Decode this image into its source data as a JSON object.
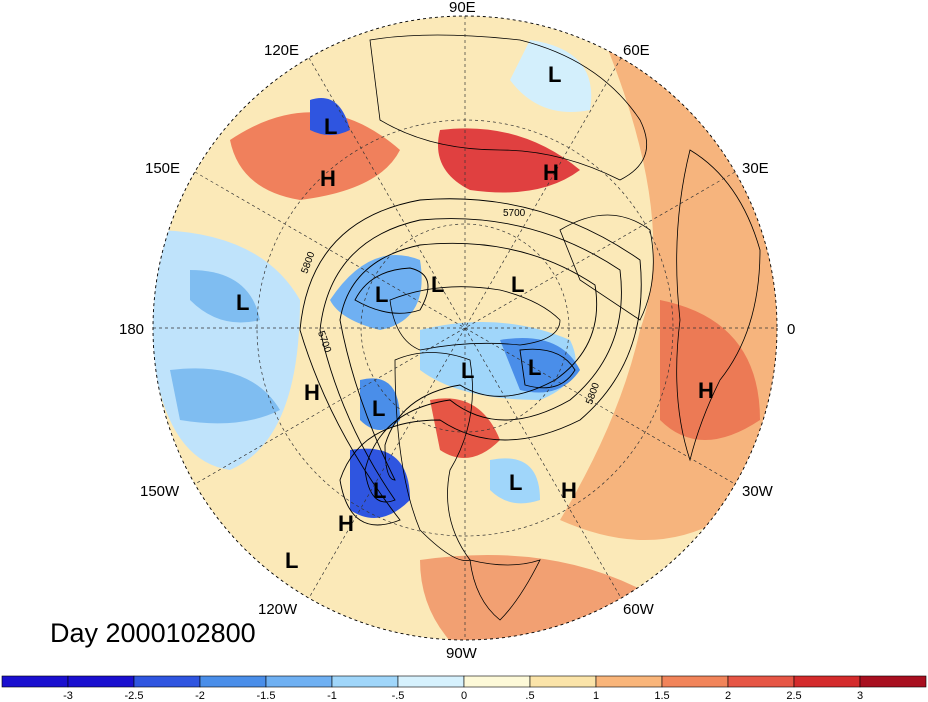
{
  "title": "Day 2000102800",
  "longitude_labels": {
    "e90": "90E",
    "e120": "120E",
    "e60": "60E",
    "e150": "150E",
    "e30": "30E",
    "w180": "180",
    "zero": "0",
    "w150": "150W",
    "w30": "30W",
    "w120": "120W",
    "w60": "60W",
    "w90": "90W"
  },
  "contour_labels": [
    "5700",
    "5800",
    "5700",
    "5800"
  ],
  "pressure_systems": [
    {
      "type": "L"
    },
    {
      "type": "L"
    },
    {
      "type": "H"
    },
    {
      "type": "H"
    },
    {
      "type": "L"
    },
    {
      "type": "L"
    },
    {
      "type": "L"
    },
    {
      "type": "L"
    },
    {
      "type": "L"
    },
    {
      "type": "L"
    },
    {
      "type": "H"
    },
    {
      "type": "L"
    },
    {
      "type": "L"
    },
    {
      "type": "H"
    },
    {
      "type": "L"
    },
    {
      "type": "L"
    },
    {
      "type": "H"
    },
    {
      "type": "H"
    },
    {
      "type": "L"
    }
  ],
  "colorbar": {
    "ticks": [
      "-3",
      "-2.5",
      "-2",
      "-1.5",
      "-1",
      "-.5",
      "0",
      ".5",
      "1",
      "1.5",
      "2",
      "2.5",
      "3"
    ],
    "colors": [
      "#1a0fcf",
      "#2f55e0",
      "#4a8ee9",
      "#6fb0f2",
      "#a0d6fa",
      "#d6f1fd",
      "#fdf9d8",
      "#fbe4a9",
      "#f9b57a",
      "#f1845a",
      "#e65645",
      "#d42b2c",
      "#a80f1f"
    ]
  },
  "palette": {
    "strong_warm": "#e65645",
    "warm": "#f9b57a",
    "cool": "#6fb0f2",
    "strong_cool": "#1a0fcf"
  }
}
